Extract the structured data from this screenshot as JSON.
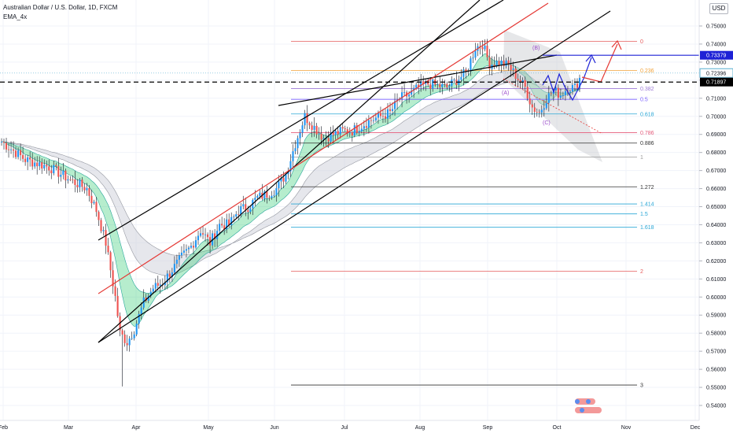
{
  "legend": {
    "symbol": "Australian Dollar / U.S. Dollar, 1D, FXCM",
    "indicator": "EMA_4x"
  },
  "currency_button": "USD",
  "chart_data": {
    "type": "candlestick",
    "ylim": [
      0.533,
      0.762
    ],
    "y_ticks": [
      "0.75000",
      "0.74000",
      "0.73000",
      "0.72000",
      "0.71000",
      "0.70000",
      "0.69000",
      "0.68000",
      "0.67000",
      "0.66000",
      "0.65000",
      "0.64000",
      "0.63000",
      "0.62000",
      "0.61000",
      "0.60000",
      "0.59000",
      "0.58000",
      "0.57000",
      "0.56000",
      "0.55000",
      "0.54000"
    ],
    "x_ticks": [
      "Feb",
      "Mar",
      "Apr",
      "May",
      "Jun",
      "Jul",
      "Aug",
      "Sep",
      "Oct",
      "Nov",
      "Dec"
    ],
    "price_labels": [
      {
        "value": 0.74,
        "text": "0.74000",
        "kind": "plain"
      },
      {
        "value": 0.73379,
        "text": "0.73379",
        "color": "#1e22d6",
        "kind": "tag"
      },
      {
        "value": 0.73,
        "text": "0.73000",
        "kind": "plain"
      },
      {
        "value": 0.72396,
        "text": "0.72396",
        "color": "#5ab0d0",
        "kind": "outline"
      },
      {
        "value": 0.71897,
        "text": "0.71897",
        "color": "#000000",
        "kind": "tag"
      }
    ],
    "fibonacci": [
      {
        "label": "0",
        "value": 0.7415,
        "color": "#e55b5b"
      },
      {
        "label": "0.236",
        "value": 0.7254,
        "color": "#f2a33a"
      },
      {
        "label": "0.382",
        "value": 0.7154,
        "color": "#9c7ad6"
      },
      {
        "label": "0.5",
        "value": 0.7094,
        "color": "#7b61ff"
      },
      {
        "label": "0.618",
        "value": 0.7013,
        "color": "#2aa7d6"
      },
      {
        "label": "0.786",
        "value": 0.691,
        "color": "#e55b7a"
      },
      {
        "label": "0.886",
        "value": 0.6852,
        "color": "#333333"
      },
      {
        "label": "1",
        "value": 0.6774,
        "color": "#999999"
      },
      {
        "label": "1.272",
        "value": 0.661,
        "color": "#333333"
      },
      {
        "label": "1.414",
        "value": 0.6515,
        "color": "#2aa7d6"
      },
      {
        "label": "1.5",
        "value": 0.646,
        "color": "#2aa7d6"
      },
      {
        "label": "1.618",
        "value": 0.6386,
        "color": "#2aa7d6"
      },
      {
        "label": "2",
        "value": 0.6143,
        "color": "#e55b5b"
      },
      {
        "label": "3",
        "value": 0.5513,
        "color": "#333333"
      }
    ],
    "wave_labels": [
      "(B)",
      "(A)",
      "(C)"
    ],
    "candles_ohlc": [],
    "candle_days": 245,
    "candles_seed": "AUDUSD daily approx",
    "price_path": [
      [
        0,
        0.686
      ],
      [
        10,
        0.676
      ],
      [
        20,
        0.672
      ],
      [
        30,
        0.664
      ],
      [
        36,
        0.66
      ],
      [
        40,
        0.648
      ],
      [
        44,
        0.63
      ],
      [
        48,
        0.6
      ],
      [
        50,
        0.58
      ],
      [
        53,
        0.575
      ],
      [
        56,
        0.582
      ],
      [
        60,
        0.597
      ],
      [
        64,
        0.605
      ],
      [
        68,
        0.608
      ],
      [
        72,
        0.615
      ],
      [
        76,
        0.622
      ],
      [
        80,
        0.628
      ],
      [
        84,
        0.637
      ],
      [
        88,
        0.63
      ],
      [
        92,
        0.64
      ],
      [
        96,
        0.64
      ],
      [
        100,
        0.648
      ],
      [
        104,
        0.65
      ],
      [
        108,
        0.655
      ],
      [
        112,
        0.657
      ],
      [
        116,
        0.66
      ],
      [
        120,
        0.668
      ],
      [
        124,
        0.685
      ],
      [
        128,
        0.7
      ],
      [
        132,
        0.694
      ],
      [
        136,
        0.688
      ],
      [
        140,
        0.69
      ],
      [
        144,
        0.692
      ],
      [
        148,
        0.692
      ],
      [
        152,
        0.695
      ],
      [
        156,
        0.698
      ],
      [
        160,
        0.7
      ],
      [
        164,
        0.702
      ],
      [
        168,
        0.71
      ],
      [
        172,
        0.712
      ],
      [
        176,
        0.716
      ],
      [
        180,
        0.718
      ],
      [
        184,
        0.717
      ],
      [
        188,
        0.716
      ],
      [
        192,
        0.72
      ],
      [
        196,
        0.724
      ],
      [
        200,
        0.738
      ],
      [
        203,
        0.74
      ],
      [
        206,
        0.729
      ],
      [
        210,
        0.73
      ],
      [
        214,
        0.728
      ],
      [
        218,
        0.721
      ],
      [
        221,
        0.716
      ],
      [
        224,
        0.705
      ],
      [
        227,
        0.702
      ],
      [
        230,
        0.71
      ],
      [
        233,
        0.714
      ],
      [
        236,
        0.712
      ],
      [
        239,
        0.716
      ],
      [
        242,
        0.716
      ],
      [
        245,
        0.7236
      ]
    ]
  }
}
